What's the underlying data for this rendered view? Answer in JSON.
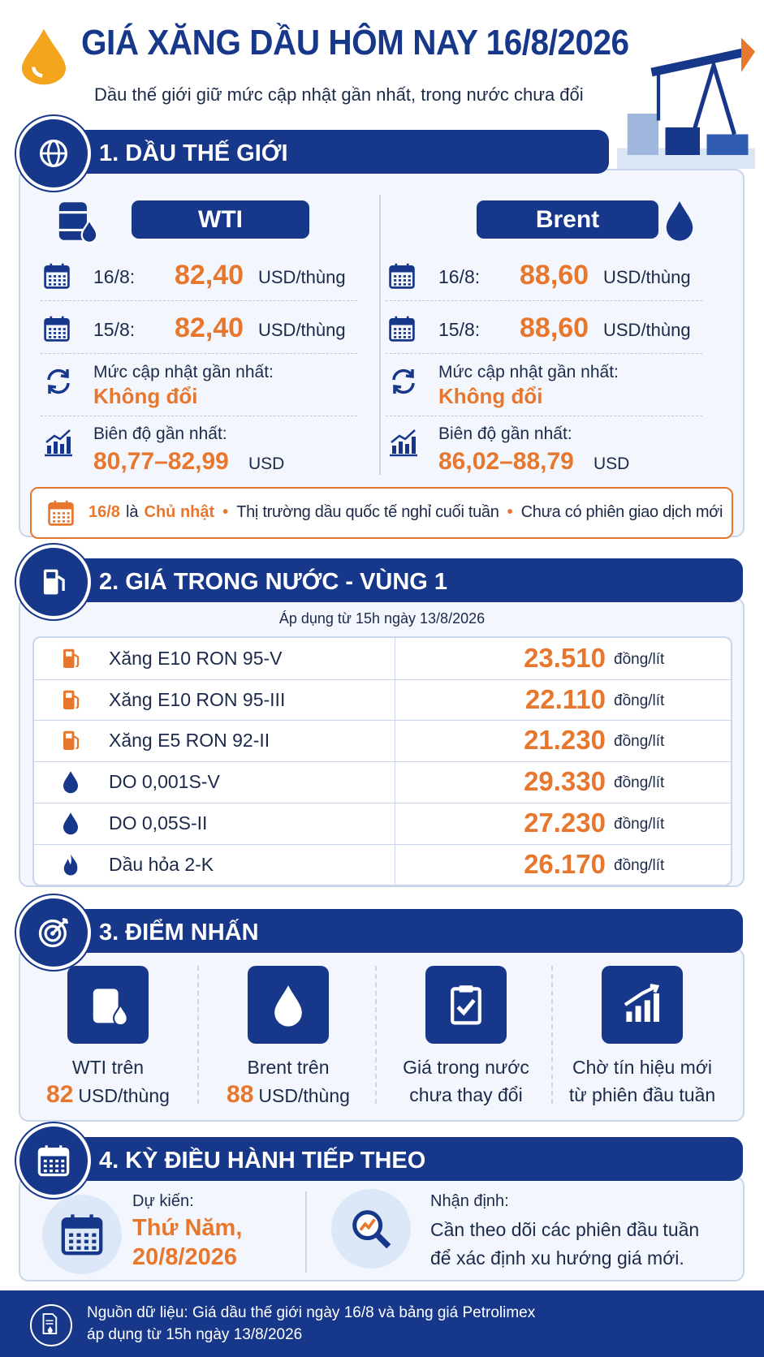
{
  "header": {
    "title": "GIÁ XĂNG DẦU HÔM NAY 16/8/2026",
    "subtitle": "Dầu thế giới giữ mức cập nhật gần nhất, trong nước chưa đổi"
  },
  "world": {
    "heading": "1. DẦU THẾ GIỚI",
    "columns": [
      {
        "name": "WTI",
        "rows": [
          {
            "date": "16/8:",
            "price": "82,40",
            "unit": "USD/thùng"
          },
          {
            "date": "15/8:",
            "price": "82,40",
            "unit": "USD/thùng"
          }
        ],
        "update_label": "Mức cập nhật gần nhất:",
        "update_value": "Không đổi",
        "range_label": "Biên độ gần nhất:",
        "range_value": "80,77–82,99",
        "range_unit": "USD"
      },
      {
        "name": "Brent",
        "rows": [
          {
            "date": "16/8:",
            "price": "88,60",
            "unit": "USD/thùng"
          },
          {
            "date": "15/8:",
            "price": "88,60",
            "unit": "USD/thùng"
          }
        ],
        "update_label": "Mức cập nhật gần nhất:",
        "update_value": "Không đổi",
        "range_label": "Biên độ gần nhất:",
        "range_value": "86,02–88,79",
        "range_unit": "USD"
      }
    ],
    "note": {
      "date": "16/8",
      "connector": "là",
      "day": "Chủ nhật",
      "items": [
        "Thị trường dầu quốc tế nghỉ cuối tuần",
        "Chưa có phiên giao dịch mới"
      ]
    }
  },
  "domestic": {
    "heading": "2. GIÁ TRONG NƯỚC - VÙNG 1",
    "applied": "Áp dụng từ 15h ngày 13/8/2026",
    "rows": [
      {
        "product": "Xăng E10 RON 95-V",
        "price": "23.510",
        "unit": "đồng/lít"
      },
      {
        "product": "Xăng E10 RON 95-III",
        "price": "22.110",
        "unit": "đồng/lít"
      },
      {
        "product": "Xăng E5 RON 92-II",
        "price": "21.230",
        "unit": "đồng/lít"
      },
      {
        "product": "DO 0,001S-V",
        "price": "29.330",
        "unit": "đồng/lít"
      },
      {
        "product": "DO 0,05S-II",
        "price": "27.230",
        "unit": "đồng/lít"
      },
      {
        "product": "Dầu hỏa 2-K",
        "price": "26.170",
        "unit": "đồng/lít"
      }
    ]
  },
  "highlights": {
    "heading": "3. ĐIỂM NHẤN",
    "items": [
      {
        "text": "WTI trên",
        "value": "82",
        "unit": "USD/thùng"
      },
      {
        "text": "Brent trên",
        "value": "88",
        "unit": "USD/thùng"
      },
      {
        "lines": [
          "Giá trong nước",
          "chưa thay đổi"
        ]
      },
      {
        "lines": [
          "Chờ tín hiệu mới",
          "từ phiên đầu tuần"
        ]
      }
    ]
  },
  "next": {
    "heading": "4. KỲ ĐIỀU HÀNH TIẾP THEO",
    "expected_label": "Dự kiến:",
    "expected_lines": [
      "Thứ Năm,",
      "20/8/2026"
    ],
    "outlook_label": "Nhận định:",
    "outlook_lines": [
      "Cần theo dõi các phiên đầu tuần",
      "để xác định xu hướng giá mới."
    ]
  },
  "footer": {
    "lines": [
      "Nguồn dữ liệu: Giá dầu thế giới ngày 16/8 và bảng giá Petrolimex",
      "áp dụng từ 15h ngày 13/8/2026"
    ]
  }
}
